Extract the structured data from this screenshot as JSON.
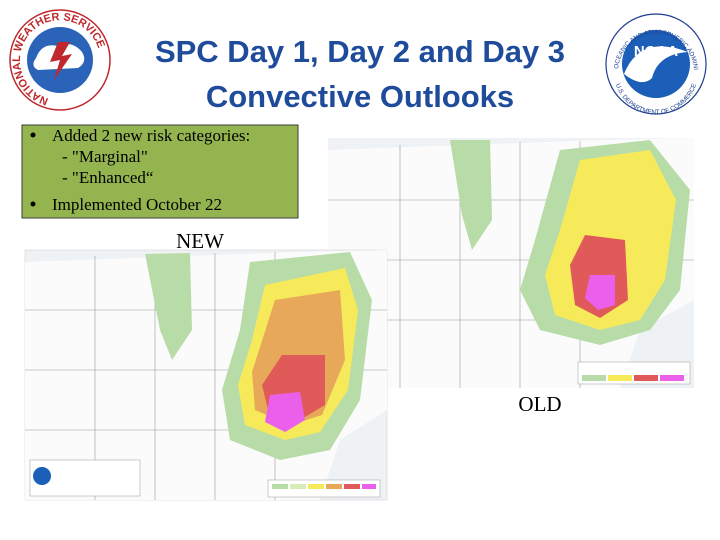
{
  "header": {
    "title_lines": [
      "SPC Day 1, Day 2 and Day 3",
      "Convective Outlooks"
    ]
  },
  "logos": {
    "nws": "NATIONAL WEATHER SERVICE",
    "noaa": "NOAA",
    "noaa_top": "NATIONAL OCEANIC AND ATMOSPHERIC ADMINISTRATION",
    "noaa_bottom": "U.S. DEPARTMENT OF COMMERCE"
  },
  "bullets": [
    {
      "text": "Added 2 new risk categories:",
      "subitems": [
        "- \"Marginal\"",
        "- \"Enhanced“"
      ]
    },
    {
      "text": "Implemented October 22"
    }
  ],
  "labels": {
    "new": "NEW",
    "old": "OLD"
  }
}
